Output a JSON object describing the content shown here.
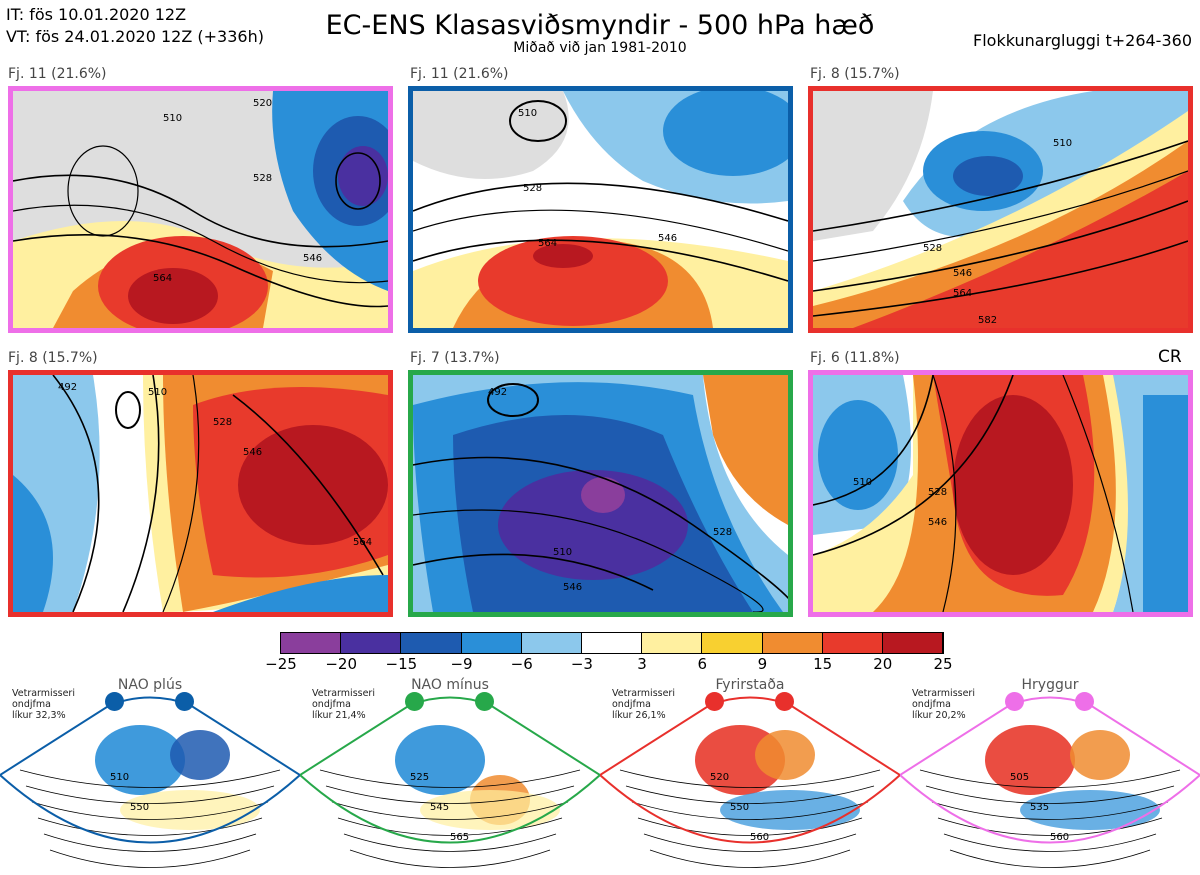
{
  "header": {
    "issue_time": "IT: fös 10.01.2020 12Z",
    "valid_time": "VT: fös 24.01.2020 12Z  (+336h)",
    "title": "EC-ENS Klasasviðsmyndir - 500 hPa hæð",
    "subtitle": "Miðað við jan 1981-2010",
    "window": "Flokkunargluggi t+264-360"
  },
  "panels": [
    {
      "label": "Fj. 11 (21.6%)",
      "border": "#ee6fe8",
      "contours": [
        "510",
        "520",
        "528",
        "546",
        "564"
      ]
    },
    {
      "label": "Fj. 11 (21.6%)",
      "border": "#0b5ea8",
      "contours": [
        "510",
        "528",
        "546",
        "564"
      ]
    },
    {
      "label": "Fj. 8 (15.7%)",
      "border": "#e8302c",
      "contours": [
        "510",
        "528",
        "546",
        "564",
        "582"
      ]
    },
    {
      "label": "Fj. 8 (15.7%)",
      "border": "#e8302c",
      "contours": [
        "492",
        "510",
        "528",
        "546",
        "564"
      ]
    },
    {
      "label": "Fj. 7 (13.7%)",
      "border": "#27a84a",
      "contours": [
        "492",
        "510",
        "528",
        "546"
      ]
    },
    {
      "label": "Fj. 6 (11.8%)",
      "border": "#ee6fe8",
      "contours": [
        "510",
        "528",
        "546"
      ]
    }
  ],
  "cr_label": "CR",
  "colorbar": {
    "ticks": [
      "−25",
      "−20",
      "−15",
      "−9",
      "−6",
      "−3",
      "3",
      "6",
      "9",
      "15",
      "20",
      "25"
    ],
    "colors": [
      "#8a3e9c",
      "#4a30a0",
      "#1e5bb0",
      "#2a8fd8",
      "#8cc8ec",
      "#ffffff",
      "#fff0a0",
      "#f8d030",
      "#f08c30",
      "#e83a2c",
      "#b81820"
    ]
  },
  "regimes": [
    {
      "title": "NAO plús",
      "color": "#0b5ea8",
      "info": [
        "Vetrarmisseri",
        "ondjfma",
        "líkur 32,3%"
      ],
      "contours": [
        "510",
        "550"
      ]
    },
    {
      "title": "NAO mínus",
      "color": "#27a84a",
      "info": [
        "Vetrarmisseri",
        "ondjfma",
        "líkur 21,4%"
      ],
      "contours": [
        "525",
        "545",
        "565"
      ]
    },
    {
      "title": "Fyrirstaða",
      "color": "#e8302c",
      "info": [
        "Vetrarmisseri",
        "ondjfma",
        "líkur 26,1%"
      ],
      "contours": [
        "520",
        "550",
        "560"
      ]
    },
    {
      "title": "Hryggur",
      "color": "#ee6fe8",
      "info": [
        "Vetrarmisseri",
        "ondjfma",
        "líkur 20,2%"
      ],
      "contours": [
        "505",
        "535",
        "560"
      ]
    }
  ]
}
